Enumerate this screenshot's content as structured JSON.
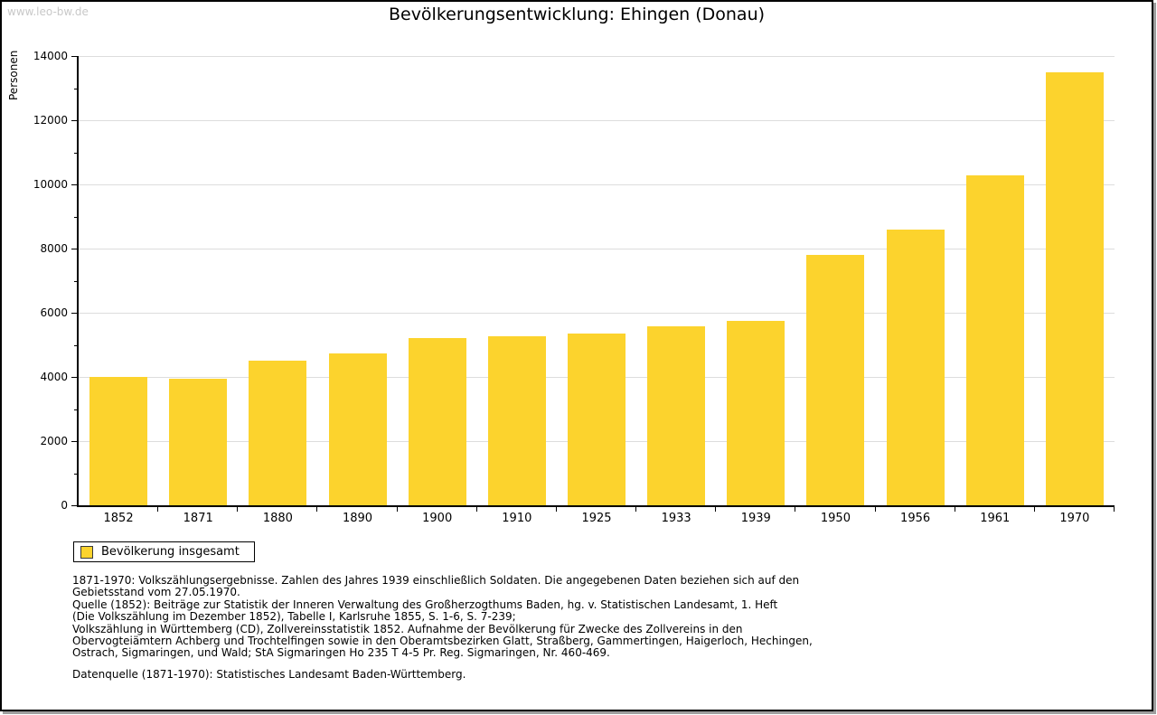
{
  "page": {
    "watermark": "www.leo-bw.de",
    "title": "Bevölkerungsentwicklung: Ehingen (Donau)"
  },
  "chart_data": {
    "type": "bar",
    "title": "Bevölkerungsentwicklung: Ehingen (Donau)",
    "xlabel": "",
    "ylabel": "Personen",
    "categories": [
      "1852",
      "1871",
      "1880",
      "1890",
      "1900",
      "1910",
      "1925",
      "1933",
      "1939",
      "1950",
      "1956",
      "1961",
      "1970"
    ],
    "values": [
      3990,
      3950,
      4510,
      4730,
      5200,
      5260,
      5340,
      5570,
      5760,
      7810,
      8600,
      10290,
      13500
    ],
    "ylim": [
      0,
      14000
    ],
    "ytick_step": 2000,
    "minor_tick_step": 1000,
    "grid": true,
    "bar_color": "#FCD32D",
    "legend": [
      {
        "label": "Bevölkerung insgesamt",
        "color": "#FCD32D"
      }
    ],
    "legend_position": "bottom-left"
  },
  "footnotes": {
    "lines": [
      "1871-1970: Volkszählungsergebnisse. Zahlen des Jahres 1939 einschließlich Soldaten. Die angegebenen Daten beziehen sich auf den",
      "Gebietsstand vom 27.05.1970.",
      "Quelle (1852): Beiträge zur Statistik der Inneren Verwaltung des Großherzogthums Baden, hg. v. Statistischen Landesamt, 1. Heft",
      "(Die Volkszählung im Dezember 1852), Tabelle I, Karlsruhe 1855, S. 1-6, S. 7-239;",
      "Volkszählung in Württemberg (CD), Zollvereinsstatistik 1852. Aufnahme der Bevölkerung für Zwecke des Zollvereins in den",
      "Obervogteiämtern Achberg und Trochtelfingen sowie in den Oberamtsbezirken Glatt, Straßberg, Gammertingen, Haigerloch, Hechingen,",
      "Ostrach, Sigmaringen, und Wald; StA Sigmaringen Ho 235 T 4-5 Pr. Reg. Sigmaringen, Nr. 460-469."
    ],
    "datasource": "Datenquelle (1871-1970): Statistisches Landesamt Baden-Württemberg."
  },
  "colors": {
    "bar": "#FCD32D",
    "grid": "#DDDDDD",
    "axis": "#000000",
    "watermark": "#C8C8C8"
  }
}
